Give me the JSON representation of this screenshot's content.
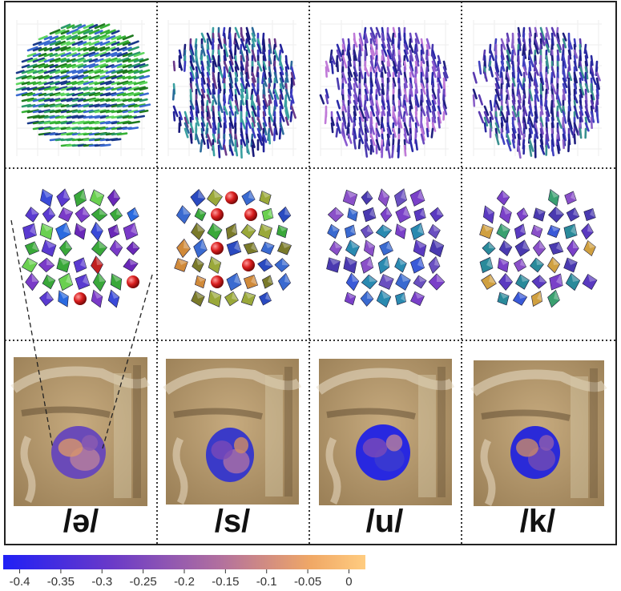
{
  "phonemes": [
    {
      "label": "/ə/"
    },
    {
      "label": "/s/"
    },
    {
      "label": "/u/"
    },
    {
      "label": "/k/"
    }
  ],
  "rows": [
    "fiber-field",
    "tensor-glyphs",
    "mri-overlay"
  ],
  "colorbar": {
    "ticks": [
      "-0.4",
      "-0.35",
      "-0.3",
      "-0.25",
      "-0.2",
      "-0.15",
      "-0.1",
      "-0.05",
      "0"
    ],
    "min": -0.42,
    "max": 0.02,
    "colors": [
      "#2a2af0",
      "#6a3ac8",
      "#a66aa8",
      "#e8a86a",
      "#ffc87a"
    ]
  }
}
